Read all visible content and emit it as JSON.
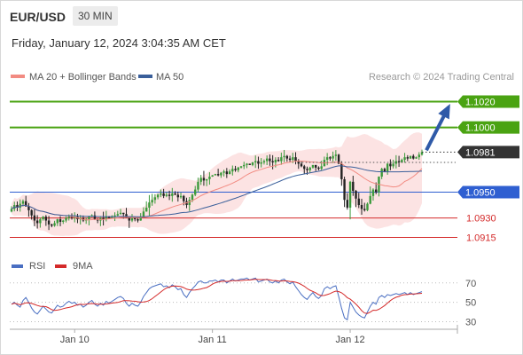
{
  "header": {
    "symbol": "EUR/USD",
    "timeframe": "30 MIN",
    "timestamp": "Friday, January 12, 2024 3:04:35 AM CET"
  },
  "chart_data": [
    {
      "type": "candlestick",
      "legend": [
        {
          "label": "MA 20 + Bollinger Bands",
          "color": "#f28b82"
        },
        {
          "label": "MA 50",
          "color": "#3a5f9a"
        }
      ],
      "credit": "Research © 2024 Trading Central",
      "x_ticks": [
        "Jan 10",
        "Jan 11",
        "Jan 12"
      ],
      "ylim": [
        1.0905,
        1.103
      ],
      "current_price": "1.0981",
      "levels": [
        {
          "value": 1.102,
          "label": "1.1020",
          "kind": "resistance",
          "color": "#4aa312"
        },
        {
          "value": 1.1,
          "label": "1.1000",
          "kind": "resistance",
          "color": "#4aa312"
        },
        {
          "value": 1.095,
          "label": "1.0950",
          "kind": "pivot",
          "color": "#2f5fd1"
        },
        {
          "value": 1.093,
          "label": "1.0930",
          "kind": "support",
          "color": "#d42a2a"
        },
        {
          "value": 1.0915,
          "label": "1.0915",
          "kind": "support",
          "color": "#d42a2a"
        }
      ],
      "close": [
        1.0937,
        1.094,
        1.0938,
        1.0941,
        1.0943,
        1.0939,
        1.0936,
        1.0932,
        1.0928,
        1.0926,
        1.0929,
        1.0931,
        1.0928,
        1.0925,
        1.0924,
        1.0926,
        1.0929,
        1.0927,
        1.0928,
        1.093,
        1.0931,
        1.093,
        1.0931,
        1.0929,
        1.093,
        1.0928,
        1.0929,
        1.0931,
        1.0932,
        1.0929,
        1.0928,
        1.093,
        1.0929,
        1.0931,
        1.093,
        1.0931,
        1.0932,
        1.0933,
        1.0934,
        1.0933,
        1.093,
        1.0928,
        1.093,
        1.0929,
        1.0928,
        1.0931,
        1.0935,
        1.0938,
        1.0942,
        1.0944,
        1.0946,
        1.0948,
        1.0949,
        1.0947,
        1.0948,
        1.0947,
        1.0949,
        1.0948,
        1.0946,
        1.0947,
        1.0943,
        1.094,
        1.0944,
        1.0948,
        1.0952,
        1.0958,
        1.0961,
        1.0959,
        1.096,
        1.0962,
        1.0963,
        1.0964,
        1.0963,
        1.0965,
        1.0966,
        1.0964,
        1.0966,
        1.0968,
        1.0967,
        1.0969,
        1.097,
        1.0971,
        1.0972,
        1.0971,
        1.0973,
        1.0974,
        1.0972,
        1.0973,
        1.0974,
        1.0976,
        1.0974,
        1.0973,
        1.0975,
        1.0974,
        1.0977,
        1.0978,
        1.0976,
        1.0975,
        1.0977,
        1.0974,
        1.0972,
        1.097,
        1.0968,
        1.0967,
        1.0969,
        1.0971,
        1.0969,
        1.0968,
        1.097,
        1.0975,
        1.0977,
        1.0976,
        1.0978,
        1.0979,
        1.0972,
        1.096,
        1.0944,
        1.0938,
        1.0958,
        1.0951,
        1.0945,
        1.094,
        1.0937,
        1.0936,
        1.0941,
        1.0947,
        1.0952,
        1.095,
        1.0962,
        1.0968,
        1.0966,
        1.0972,
        1.097,
        1.0972,
        1.0974,
        1.0973,
        1.0975,
        1.0977,
        1.0976,
        1.0978,
        1.0976,
        1.0977,
        1.0979,
        1.0981
      ]
    },
    {
      "type": "line",
      "legend": [
        {
          "label": "RSI",
          "color": "#4a6fc2"
        },
        {
          "label": "9MA",
          "color": "#d42a2a"
        }
      ],
      "y_ticks": [
        "70",
        "50",
        "30"
      ],
      "ylim": [
        25,
        78
      ],
      "rsi": [
        48,
        50,
        47,
        45,
        52,
        55,
        50,
        44,
        40,
        38,
        42,
        46,
        43,
        40,
        39,
        43,
        47,
        45,
        46,
        49,
        51,
        49,
        50,
        47,
        48,
        45,
        47,
        50,
        52,
        48,
        46,
        49,
        47,
        51,
        49,
        51,
        53,
        55,
        56,
        54,
        49,
        46,
        49,
        47,
        46,
        50,
        56,
        60,
        64,
        66,
        67,
        68,
        69,
        66,
        67,
        65,
        68,
        66,
        63,
        64,
        58,
        55,
        60,
        64,
        67,
        71,
        72,
        70,
        70,
        72,
        72,
        73,
        71,
        73,
        73,
        70,
        72,
        74,
        72,
        73,
        74,
        74,
        75,
        73,
        74,
        75,
        71,
        72,
        73,
        74,
        71,
        70,
        72,
        70,
        73,
        74,
        71,
        69,
        71,
        66,
        62,
        58,
        55,
        53,
        57,
        60,
        56,
        54,
        57,
        64,
        66,
        64,
        66,
        67,
        56,
        44,
        34,
        32,
        50,
        45,
        40,
        37,
        35,
        34,
        40,
        46,
        50,
        48,
        55,
        57,
        55,
        58,
        57,
        58,
        59,
        58,
        59,
        60,
        58,
        60,
        58,
        59,
        60,
        61
      ]
    }
  ]
}
